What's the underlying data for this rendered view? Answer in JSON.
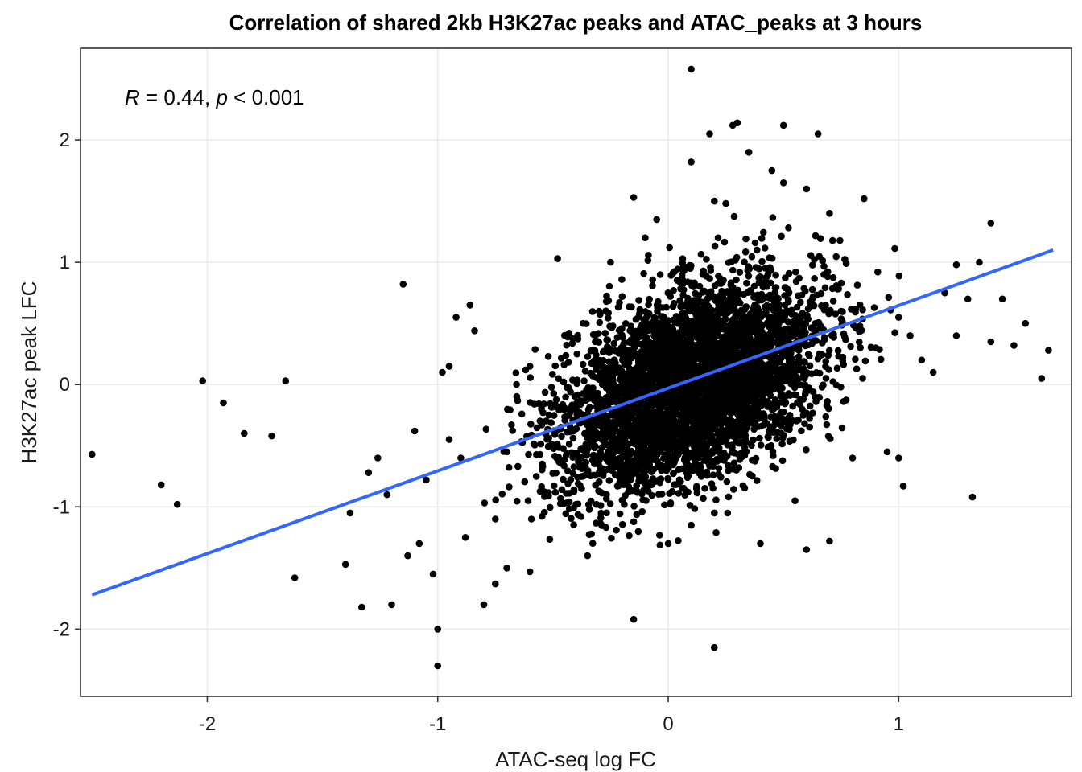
{
  "chart_data": {
    "type": "scatter",
    "title": "Correlation of shared 2kb H3K27ac peaks and ATAC_peaks at 3 hours",
    "xlabel": "ATAC-seq log FC",
    "ylabel": "H3K27ac peak LFC",
    "xlim": [
      -2.55,
      1.75
    ],
    "ylim": [
      -2.55,
      2.75
    ],
    "xticks": [
      -2,
      -1,
      0,
      1
    ],
    "yticks": [
      -2,
      -1,
      0,
      1,
      2
    ],
    "xtick_labels": [
      "-2",
      "-1",
      "0",
      "1"
    ],
    "ytick_labels": [
      "-2",
      "-1",
      "0",
      "1",
      "2"
    ],
    "grid": true,
    "annotation": {
      "r_symbol": "R",
      "r_text": " = 0.44, ",
      "p_symbol": "p",
      "p_text": " < 0.001"
    },
    "fit_line": {
      "x": [
        -2.5,
        1.67
      ],
      "y": [
        -1.72,
        1.1
      ],
      "color": "#3366ff"
    },
    "point_color": "#000000",
    "cluster": {
      "n": 4500,
      "x_mean": 0.1,
      "x_sd": 0.28,
      "y_mean": 0.0,
      "y_sd": 0.42,
      "r": 0.44
    },
    "points": [
      [
        -2.5,
        -0.57
      ],
      [
        -2.2,
        -0.82
      ],
      [
        -2.13,
        -0.98
      ],
      [
        -2.02,
        0.03
      ],
      [
        -1.93,
        -0.15
      ],
      [
        -1.84,
        -0.4
      ],
      [
        -1.72,
        -0.42
      ],
      [
        -1.66,
        0.03
      ],
      [
        -1.62,
        -1.58
      ],
      [
        -1.4,
        -1.47
      ],
      [
        -1.38,
        -1.05
      ],
      [
        -1.33,
        -1.82
      ],
      [
        -1.26,
        -0.6
      ],
      [
        -1.2,
        -1.8
      ],
      [
        -1.15,
        0.82
      ],
      [
        -1.13,
        -1.4
      ],
      [
        -1.1,
        -0.38
      ],
      [
        -1.02,
        -1.55
      ],
      [
        -1.0,
        -2.0
      ],
      [
        -1.0,
        -2.3
      ],
      [
        -0.98,
        0.1
      ],
      [
        -0.95,
        0.15
      ],
      [
        -0.86,
        0.65
      ],
      [
        -0.84,
        0.44
      ],
      [
        -0.8,
        -1.8
      ],
      [
        -0.75,
        -1.63
      ],
      [
        -0.7,
        -1.5
      ],
      [
        -0.6,
        -1.53
      ],
      [
        -0.55,
        -0.2
      ],
      [
        -0.48,
        1.03
      ],
      [
        -0.35,
        -1.4
      ],
      [
        -0.3,
        0.6
      ],
      [
        -0.25,
        1.0
      ],
      [
        -0.2,
        0.72
      ],
      [
        -0.15,
        1.53
      ],
      [
        -0.15,
        -1.92
      ],
      [
        -0.1,
        1.2
      ],
      [
        -0.08,
        -0.8
      ],
      [
        -0.05,
        1.35
      ],
      [
        0.0,
        -1.3
      ],
      [
        0.05,
        0.3
      ],
      [
        0.1,
        1.82
      ],
      [
        0.1,
        -1.15
      ],
      [
        0.1,
        2.58
      ],
      [
        0.15,
        0.9
      ],
      [
        0.18,
        2.05
      ],
      [
        0.2,
        1.5
      ],
      [
        0.2,
        -2.15
      ],
      [
        0.2,
        -1.05
      ],
      [
        0.25,
        1.48
      ],
      [
        0.28,
        2.12
      ],
      [
        0.3,
        2.14
      ],
      [
        0.35,
        1.9
      ],
      [
        0.4,
        -1.3
      ],
      [
        0.45,
        1.75
      ],
      [
        0.5,
        2.12
      ],
      [
        0.5,
        1.65
      ],
      [
        0.55,
        -0.95
      ],
      [
        0.6,
        1.6
      ],
      [
        0.6,
        -1.35
      ],
      [
        0.65,
        2.05
      ],
      [
        0.7,
        1.4
      ],
      [
        0.7,
        -1.28
      ],
      [
        0.75,
        0.6
      ],
      [
        0.8,
        -0.6
      ],
      [
        0.85,
        1.52
      ],
      [
        0.9,
        0.3
      ],
      [
        0.95,
        -0.55
      ],
      [
        1.0,
        0.55
      ],
      [
        1.0,
        -0.6
      ],
      [
        1.02,
        -0.83
      ],
      [
        1.05,
        0.4
      ],
      [
        1.1,
        0.2
      ],
      [
        1.15,
        0.1
      ],
      [
        1.2,
        0.75
      ],
      [
        1.25,
        0.4
      ],
      [
        1.3,
        0.7
      ],
      [
        1.32,
        -0.92
      ],
      [
        1.35,
        1.0
      ],
      [
        1.4,
        0.35
      ],
      [
        1.45,
        0.7
      ],
      [
        1.5,
        0.32
      ],
      [
        1.55,
        0.5
      ],
      [
        1.62,
        0.05
      ],
      [
        1.65,
        0.28
      ],
      [
        1.4,
        1.32
      ],
      [
        1.25,
        0.98
      ],
      [
        -0.43,
        0.42
      ],
      [
        -0.4,
        -0.98
      ],
      [
        -0.6,
        0.15
      ],
      [
        -0.7,
        -0.55
      ],
      [
        -0.75,
        -1.1
      ],
      [
        -0.9,
        -0.6
      ],
      [
        -0.92,
        0.55
      ],
      [
        -0.95,
        -0.45
      ],
      [
        -1.05,
        -0.78
      ],
      [
        -1.08,
        -1.3
      ],
      [
        -1.22,
        -0.9
      ],
      [
        -1.3,
        -0.72
      ],
      [
        -0.88,
        -1.25
      ]
    ]
  }
}
